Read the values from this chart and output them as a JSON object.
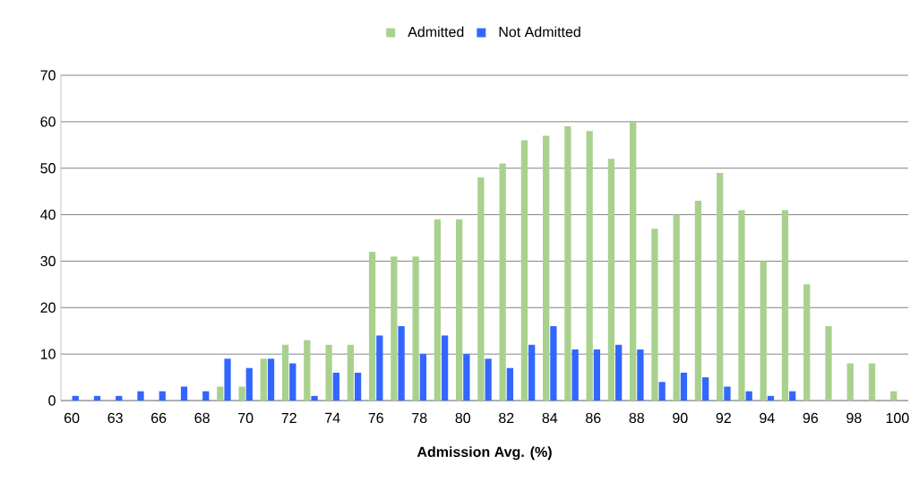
{
  "chart_data": {
    "type": "bar",
    "xlabel": "Admission Avg. (%)",
    "categories": [
      "60",
      null,
      "63",
      null,
      "66",
      null,
      "68",
      null,
      "70",
      null,
      "72",
      null,
      "74",
      null,
      "76",
      null,
      "78",
      null,
      "80",
      null,
      "82",
      null,
      "84",
      null,
      "86",
      null,
      "88",
      null,
      "90",
      null,
      "92",
      null,
      "94",
      null,
      "96",
      null,
      "98",
      null,
      "100"
    ],
    "series": [
      {
        "name": "Admitted",
        "color": "#a9d18e",
        "values": [
          0,
          0,
          0,
          0,
          0,
          0,
          0,
          3,
          3,
          9,
          12,
          13,
          12,
          12,
          32,
          31,
          31,
          39,
          39,
          48,
          51,
          56,
          57,
          59,
          58,
          52,
          60,
          37,
          40,
          43,
          49,
          41,
          30,
          41,
          25,
          16,
          8,
          8,
          2
        ]
      },
      {
        "name": "Not Admitted",
        "color": "#3366ff",
        "values": [
          1,
          1,
          1,
          2,
          2,
          3,
          2,
          9,
          7,
          9,
          8,
          1,
          6,
          6,
          14,
          16,
          10,
          14,
          10,
          9,
          7,
          12,
          16,
          11,
          11,
          12,
          11,
          4,
          6,
          5,
          3,
          2,
          1,
          2,
          0,
          0,
          0,
          0,
          0
        ]
      }
    ],
    "ylim": [
      0,
      70
    ],
    "yticks": [
      0,
      10,
      20,
      30,
      40,
      50,
      60,
      70
    ],
    "grid": "y",
    "legend": "top"
  }
}
